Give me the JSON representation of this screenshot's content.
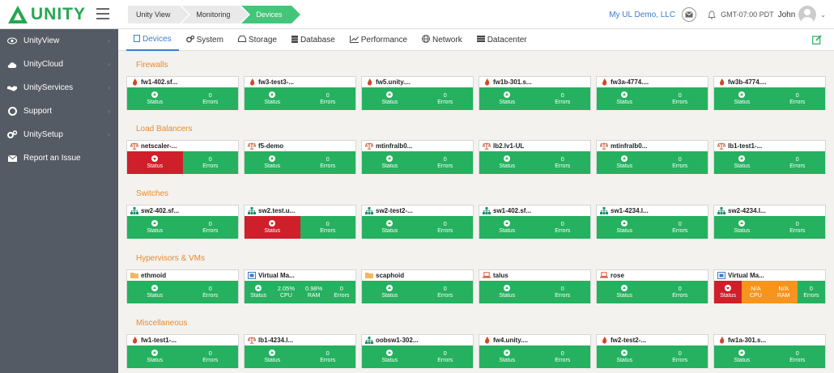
{
  "brand": {
    "name": "UNITY",
    "color": "#25a652"
  },
  "breadcrumb": [
    "Unity View",
    "Monitoring",
    "Devices"
  ],
  "topbar": {
    "account": "My UL Demo, LLC",
    "timezone": "GMT-07:00 PDT",
    "user": "John"
  },
  "sidebar": [
    {
      "label": "UnityView",
      "icon": "eye-icon"
    },
    {
      "label": "UnityCloud",
      "icon": "cloud-icon"
    },
    {
      "label": "UnityServices",
      "icon": "handshake-icon"
    },
    {
      "label": "Support",
      "icon": "lifebuoy-icon"
    },
    {
      "label": "UnitySetup",
      "icon": "gears-icon"
    },
    {
      "label": "Report an Issue",
      "icon": "envelope-icon"
    }
  ],
  "tabs": [
    {
      "label": "Devices",
      "icon": "devices-icon"
    },
    {
      "label": "System",
      "icon": "system-icon"
    },
    {
      "label": "Storage",
      "icon": "storage-icon"
    },
    {
      "label": "Database",
      "icon": "database-icon"
    },
    {
      "label": "Performance",
      "icon": "chart-icon"
    },
    {
      "label": "Network",
      "icon": "globe-icon"
    },
    {
      "label": "Datacenter",
      "icon": "server-icon"
    }
  ],
  "colors": {
    "ok": "#25b15f",
    "error": "#cf1f2a",
    "warn": "#f7941d",
    "section": "#e98a2d",
    "accent": "#3d7cc9"
  },
  "sections": [
    {
      "title": "Firewalls",
      "devices": [
        {
          "name": "fw1-402.sf...",
          "icon": "flame-icon",
          "status": "ok",
          "errors": "0"
        },
        {
          "name": "fw3-test3-...",
          "icon": "flame-icon",
          "status": "ok",
          "errors": "0"
        },
        {
          "name": "fw5.unity....",
          "icon": "flame-icon",
          "status": "ok",
          "errors": "0"
        },
        {
          "name": "fw1b-301.s...",
          "icon": "flame-icon",
          "status": "ok",
          "errors": "0"
        },
        {
          "name": "fw3a-4774....",
          "icon": "flame-icon",
          "status": "ok",
          "errors": "0"
        },
        {
          "name": "fw3b-4774....",
          "icon": "flame-icon",
          "status": "ok",
          "errors": "0"
        }
      ]
    },
    {
      "title": "Load Balancers",
      "devices": [
        {
          "name": "netscaler-...",
          "icon": "scale-icon",
          "status": "error",
          "errors": "0"
        },
        {
          "name": "f5-demo",
          "icon": "scale-icon",
          "status": "ok",
          "errors": "0"
        },
        {
          "name": "mtinfralb0...",
          "icon": "scale-icon",
          "status": "ok",
          "errors": "0"
        },
        {
          "name": "lb2.lv1-UL",
          "icon": "scale-icon",
          "status": "ok",
          "errors": "0"
        },
        {
          "name": "mtinfralb0...",
          "icon": "scale-icon",
          "status": "ok",
          "errors": "0"
        },
        {
          "name": "lb1-test1-...",
          "icon": "scale-icon",
          "status": "ok",
          "errors": "0"
        }
      ]
    },
    {
      "title": "Switches",
      "devices": [
        {
          "name": "sw2-402.sf...",
          "icon": "sitemap-icon",
          "status": "ok",
          "errors": "0"
        },
        {
          "name": "sw2.test.u...",
          "icon": "sitemap-icon",
          "status": "error",
          "errors": "0"
        },
        {
          "name": "sw2-test2-...",
          "icon": "sitemap-icon",
          "status": "ok",
          "errors": "0"
        },
        {
          "name": "sw1-402.sf...",
          "icon": "sitemap-icon",
          "status": "ok",
          "errors": "0"
        },
        {
          "name": "sw1-4234.l...",
          "icon": "sitemap-icon",
          "status": "ok",
          "errors": "0"
        },
        {
          "name": "sw2-4234.l...",
          "icon": "sitemap-icon",
          "status": "ok",
          "errors": "0"
        }
      ]
    },
    {
      "title": "Hypervisors & VMs",
      "devices": [
        {
          "name": "ethmoid",
          "icon": "folder-icon",
          "status": "ok",
          "errors": "0"
        },
        {
          "name": "Virtual Ma...",
          "icon": "vm-icon",
          "status": "ok",
          "errors": "0",
          "cpu": "2.05%",
          "ram": "0.98%"
        },
        {
          "name": "scaphoid",
          "icon": "folder-icon",
          "status": "ok",
          "errors": "0"
        },
        {
          "name": "talus",
          "icon": "laptop-icon",
          "status": "ok",
          "errors": "0"
        },
        {
          "name": "rose",
          "icon": "laptop-icon",
          "status": "ok",
          "errors": "0"
        },
        {
          "name": "Virtual Ma...",
          "icon": "vm-icon",
          "status": "error",
          "errors": "0",
          "cpu": "N/A",
          "ram": "N/A",
          "metricWarn": true
        }
      ]
    },
    {
      "title": "Miscellaneous",
      "devices": [
        {
          "name": "fw1-test1-...",
          "icon": "flame-icon",
          "status": "ok",
          "errors": "0"
        },
        {
          "name": "lb1-4234.l...",
          "icon": "scale-icon",
          "status": "ok",
          "errors": "0"
        },
        {
          "name": "oobsw1-302...",
          "icon": "sitemap-icon",
          "status": "ok",
          "errors": "0"
        },
        {
          "name": "fw4.unity....",
          "icon": "flame-icon",
          "status": "ok",
          "errors": "0"
        },
        {
          "name": "fw2-test2-...",
          "icon": "flame-icon",
          "status": "ok",
          "errors": "0"
        },
        {
          "name": "fw1a-301.s...",
          "icon": "flame-icon",
          "status": "ok",
          "errors": "0"
        }
      ]
    }
  ],
  "labels": {
    "status": "Status",
    "errors": "Errors",
    "cpu": "CPU",
    "ram": "RAM"
  }
}
